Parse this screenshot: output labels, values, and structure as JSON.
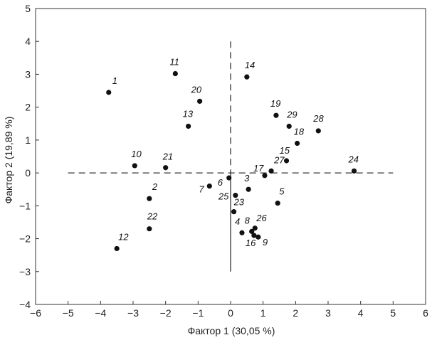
{
  "chart_data": {
    "type": "scatter",
    "xlabel": "Фактор 1 (30,05 %)",
    "ylabel": "Фактор 2 (19,89 %)",
    "xlim": [
      -6,
      6
    ],
    "ylim": [
      -4,
      5
    ],
    "xticks": [
      -6,
      -5,
      -4,
      -3,
      -2,
      -1,
      0,
      1,
      2,
      3,
      4,
      5,
      6
    ],
    "yticks": [
      -4,
      -3,
      -2,
      -1,
      0,
      1,
      2,
      3,
      4,
      5
    ],
    "grid": false,
    "reference_lines": {
      "horizontal_dashed": {
        "y": 0,
        "x_from": -5,
        "x_to": 5
      },
      "vertical_dashed": {
        "x": 0,
        "y_from": 0,
        "y_to": 4
      },
      "vertical_solid": {
        "x": 0,
        "y_from": -3,
        "y_to": 0
      }
    },
    "points": [
      {
        "label": "1",
        "x": -3.75,
        "y": 2.45
      },
      {
        "label": "2",
        "x": -2.5,
        "y": -0.78
      },
      {
        "label": "3",
        "x": 0.55,
        "y": -0.5
      },
      {
        "label": "4",
        "x": 0.35,
        "y": -1.82
      },
      {
        "label": "5",
        "x": 1.45,
        "y": -0.92
      },
      {
        "label": "6",
        "x": -0.05,
        "y": -0.15
      },
      {
        "label": "7",
        "x": -0.65,
        "y": -0.4
      },
      {
        "label": "8",
        "x": 0.65,
        "y": -1.78
      },
      {
        "label": "9",
        "x": 0.85,
        "y": -1.95
      },
      {
        "label": "10",
        "x": -2.95,
        "y": 0.22
      },
      {
        "label": "11",
        "x": -1.7,
        "y": 3.02
      },
      {
        "label": "12",
        "x": -3.5,
        "y": -2.3
      },
      {
        "label": "13",
        "x": -1.3,
        "y": 1.42
      },
      {
        "label": "14",
        "x": 0.5,
        "y": 2.92
      },
      {
        "label": "15",
        "x": 1.72,
        "y": 0.37
      },
      {
        "label": "16",
        "x": 0.72,
        "y": -1.9
      },
      {
        "label": "17",
        "x": 1.05,
        "y": -0.08
      },
      {
        "label": "18",
        "x": 2.05,
        "y": 0.9
      },
      {
        "label": "19",
        "x": 1.4,
        "y": 1.75
      },
      {
        "label": "20",
        "x": -0.95,
        "y": 2.18
      },
      {
        "label": "21",
        "x": -2.0,
        "y": 0.16
      },
      {
        "label": "22",
        "x": -2.5,
        "y": -1.7
      },
      {
        "label": "23",
        "x": 0.1,
        "y": -1.18
      },
      {
        "label": "24",
        "x": 3.8,
        "y": 0.06
      },
      {
        "label": "25",
        "x": 0.15,
        "y": -0.68
      },
      {
        "label": "26",
        "x": 0.75,
        "y": -1.68
      },
      {
        "label": "27",
        "x": 1.25,
        "y": 0.06
      },
      {
        "label": "28",
        "x": 2.7,
        "y": 1.28
      },
      {
        "label": "29",
        "x": 1.8,
        "y": 1.42
      }
    ]
  }
}
